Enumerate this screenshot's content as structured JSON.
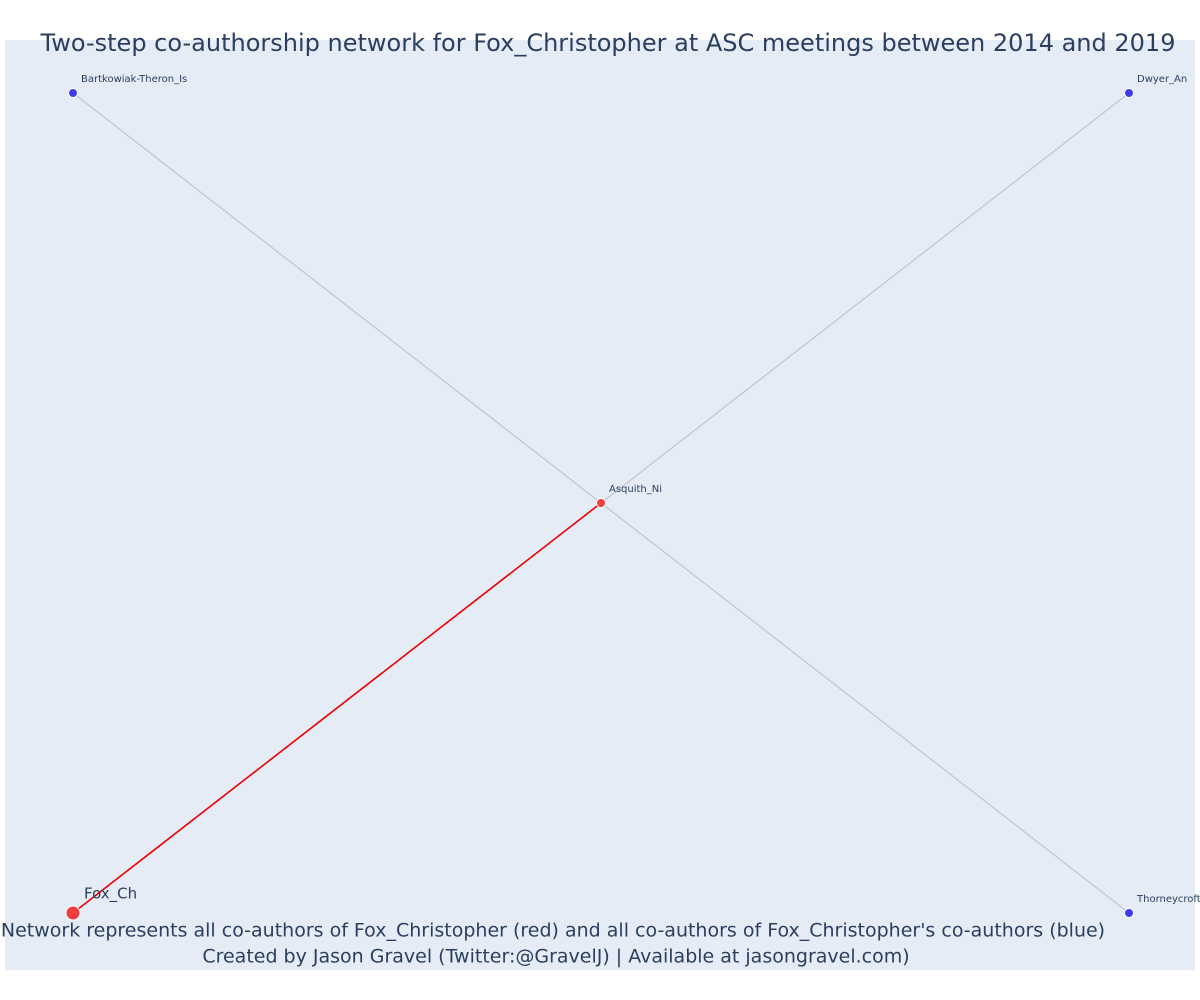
{
  "title": "Two-step co-authorship network for Fox_Christopher at ASC meetings between 2014 and 2019",
  "nodes": [
    {
      "label": "Bartkowiak-Theron_Is"
    },
    {
      "label": "Dwyer_An"
    },
    {
      "label": "Asquith_Ni"
    },
    {
      "label": "Fox_Ch"
    },
    {
      "label": "Thorneycroft"
    }
  ],
  "footer": [
    "Network represents all co-authors of Fox_Christopher (red) and all co-authors of Fox_Christopher's co-authors (blue)",
    "Created by Jason Gravel (Twitter:@GravelJ) | Available at jasongravel.com)"
  ]
}
